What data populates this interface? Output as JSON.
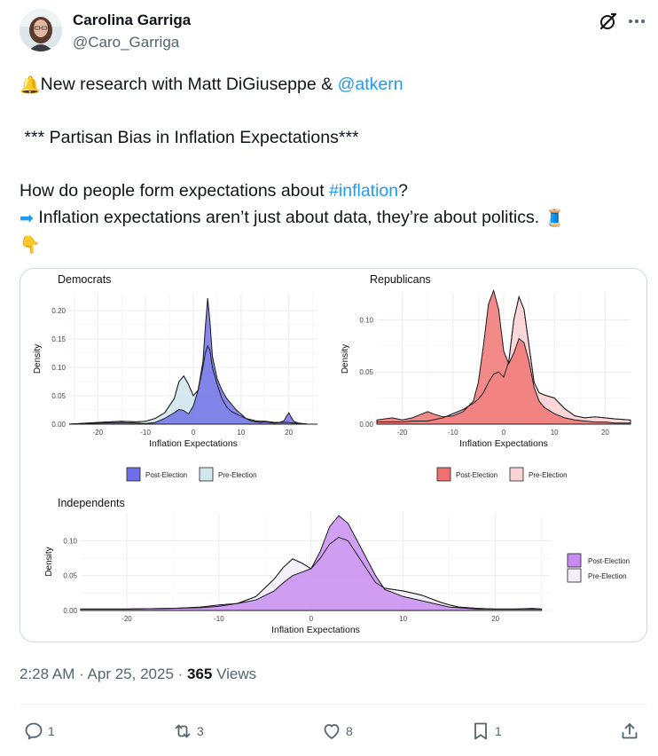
{
  "author": {
    "name": "Carolina Garriga",
    "handle": "@Caro_Garriga"
  },
  "tweet": {
    "line1_prefix": "New research with Matt DiGiuseppe & ",
    "line1_mention": "@atkern",
    "title": "*** Partisan Bias in Inflation Expectations***",
    "line3_prefix": "How do people form expectations about ",
    "line3_hashtag": "#inflation",
    "line3_suffix": "?",
    "line4": "Inflation expectations aren’t just about data, they’re about politics.",
    "emojis": {
      "bell": "🔔",
      "arrow": "➡",
      "thread": "🧵",
      "point_down": "👇"
    }
  },
  "chart_data": [
    {
      "type": "area",
      "title": "Democrats",
      "xlabel": "Inflation Expectations",
      "ylabel": "Density",
      "xlim": [
        -26,
        26
      ],
      "ylim": [
        0,
        0.23
      ],
      "xticks": [
        -20,
        -10,
        0,
        10,
        20
      ],
      "yticks": [
        0.0,
        0.05,
        0.1,
        0.15,
        0.2
      ],
      "ytick_labels": [
        "0.00",
        "0.05",
        "0.10",
        "0.15",
        "0.20"
      ],
      "legend_position": "bottom",
      "series": [
        {
          "name": "Post-Election",
          "color": "#6e6ee6",
          "x": [
            -26,
            -20,
            -15,
            -12,
            -10,
            -8,
            -6,
            -4,
            -3,
            -2,
            -1,
            0,
            1,
            2,
            2.5,
            3,
            3.5,
            4,
            5,
            6,
            7,
            8,
            9,
            10,
            11,
            12,
            13,
            14,
            15,
            16,
            17,
            18,
            19,
            19.5,
            20,
            20.5,
            21,
            22,
            24,
            26
          ],
          "y": [
            0.0,
            0.002,
            0.003,
            0.002,
            0.001,
            0.003,
            0.01,
            0.02,
            0.026,
            0.024,
            0.018,
            0.032,
            0.06,
            0.11,
            0.17,
            0.222,
            0.18,
            0.12,
            0.08,
            0.06,
            0.045,
            0.035,
            0.025,
            0.018,
            0.01,
            0.006,
            0.004,
            0.003,
            0.004,
            0.003,
            0.002,
            0.003,
            0.006,
            0.014,
            0.02,
            0.012,
            0.005,
            0.002,
            0.0,
            0.0
          ]
        },
        {
          "name": "Pre-Election",
          "color": "#d2e6ee",
          "x": [
            -26,
            -20,
            -15,
            -12,
            -10,
            -8,
            -6,
            -4,
            -3,
            -2,
            -1,
            0,
            1,
            2,
            2.5,
            3,
            3.5,
            4,
            5,
            6,
            7,
            8,
            9,
            10,
            11,
            12,
            13,
            14,
            15,
            16,
            17,
            18,
            19,
            19.5,
            20,
            20.5,
            21,
            22,
            24,
            26
          ],
          "y": [
            0.0,
            0.003,
            0.005,
            0.004,
            0.005,
            0.01,
            0.02,
            0.045,
            0.075,
            0.085,
            0.07,
            0.05,
            0.06,
            0.1,
            0.125,
            0.138,
            0.13,
            0.1,
            0.07,
            0.045,
            0.03,
            0.022,
            0.018,
            0.014,
            0.01,
            0.008,
            0.006,
            0.005,
            0.005,
            0.004,
            0.003,
            0.003,
            0.003,
            0.003,
            0.003,
            0.002,
            0.002,
            0.001,
            0.0,
            0.0
          ]
        }
      ]
    },
    {
      "type": "area",
      "title": "Republicans",
      "xlabel": "Inflation Expectations",
      "ylabel": "Density",
      "xlim": [
        -25,
        25
      ],
      "ylim": [
        0,
        0.125
      ],
      "xticks": [
        -20,
        -10,
        0,
        10,
        20
      ],
      "yticks": [
        0.0,
        0.05,
        0.1
      ],
      "ytick_labels": [
        "0.00",
        "0.05",
        "0.10"
      ],
      "legend_position": "bottom",
      "series": [
        {
          "name": "Post-Election",
          "color": "#f07070",
          "x": [
            -25,
            -22,
            -20,
            -18,
            -16,
            -15,
            -14,
            -12,
            -10,
            -8,
            -6,
            -5,
            -4,
            -3,
            -2,
            -1,
            0,
            1,
            2,
            3,
            4,
            5,
            6,
            7,
            8,
            10,
            12,
            14,
            16,
            18,
            20,
            22,
            25
          ],
          "y": [
            0.004,
            0.006,
            0.004,
            0.006,
            0.01,
            0.012,
            0.01,
            0.007,
            0.008,
            0.012,
            0.022,
            0.04,
            0.075,
            0.115,
            0.128,
            0.11,
            0.07,
            0.058,
            0.068,
            0.082,
            0.078,
            0.06,
            0.035,
            0.022,
            0.016,
            0.01,
            0.006,
            0.004,
            0.003,
            0.002,
            0.002,
            0.001,
            0.001
          ]
        },
        {
          "name": "Pre-Election",
          "color": "#f9d2d4",
          "x": [
            -25,
            -22,
            -20,
            -18,
            -16,
            -15,
            -14,
            -12,
            -10,
            -8,
            -6,
            -5,
            -4,
            -3,
            -2,
            -1,
            0,
            1,
            2,
            3,
            4,
            5,
            6,
            7,
            8,
            10,
            12,
            14,
            16,
            18,
            20,
            22,
            25
          ],
          "y": [
            0.002,
            0.002,
            0.002,
            0.003,
            0.003,
            0.003,
            0.004,
            0.006,
            0.01,
            0.014,
            0.02,
            0.024,
            0.03,
            0.04,
            0.048,
            0.05,
            0.045,
            0.06,
            0.1,
            0.122,
            0.11,
            0.075,
            0.04,
            0.03,
            0.028,
            0.025,
            0.015,
            0.008,
            0.006,
            0.007,
            0.006,
            0.005,
            0.004
          ]
        }
      ]
    },
    {
      "type": "area",
      "title": "Independents",
      "xlabel": "Inflation Expectations",
      "ylabel": "Density",
      "xlim": [
        -25,
        26
      ],
      "ylim": [
        0,
        0.14
      ],
      "xticks": [
        -20,
        -10,
        0,
        10,
        20
      ],
      "yticks": [
        0.0,
        0.05,
        0.1
      ],
      "ytick_labels": [
        "0.00",
        "0.05",
        "0.10"
      ],
      "legend_position": "right",
      "series": [
        {
          "name": "Post-Election",
          "color": "#c78af0",
          "x": [
            -25,
            -20,
            -15,
            -12,
            -10,
            -8,
            -6,
            -4,
            -3,
            -2,
            -1,
            0,
            1,
            2,
            3,
            4,
            5,
            6,
            7,
            8,
            10,
            12,
            14,
            15,
            16,
            18,
            20,
            22,
            24,
            25
          ],
          "y": [
            0.002,
            0.002,
            0.003,
            0.005,
            0.008,
            0.01,
            0.015,
            0.028,
            0.04,
            0.05,
            0.055,
            0.06,
            0.085,
            0.12,
            0.136,
            0.125,
            0.1,
            0.075,
            0.05,
            0.03,
            0.02,
            0.014,
            0.008,
            0.005,
            0.004,
            0.002,
            0.002,
            0.002,
            0.003,
            0.002
          ]
        },
        {
          "name": "Pre-Election",
          "color": "#f3eef8",
          "x": [
            -25,
            -20,
            -15,
            -12,
            -10,
            -8,
            -6,
            -4,
            -3,
            -2,
            -1,
            0,
            1,
            2,
            3,
            4,
            5,
            6,
            7,
            8,
            10,
            12,
            14,
            15,
            16,
            18,
            20,
            22,
            24,
            25
          ],
          "y": [
            0.002,
            0.002,
            0.003,
            0.004,
            0.006,
            0.01,
            0.02,
            0.045,
            0.062,
            0.074,
            0.068,
            0.06,
            0.075,
            0.095,
            0.105,
            0.1,
            0.08,
            0.06,
            0.04,
            0.032,
            0.028,
            0.022,
            0.012,
            0.008,
            0.005,
            0.003,
            0.002,
            0.002,
            0.002,
            0.002
          ]
        }
      ]
    }
  ],
  "meta": {
    "time": "2:28 AM · Apr 25, 2025 · ",
    "views": "365",
    "views_label": " Views"
  },
  "actions": {
    "replies": "1",
    "reposts": "3",
    "likes": "8",
    "bookmarks": "1"
  },
  "icons": {
    "reply": "reply-icon",
    "repost": "repost-icon",
    "like": "like-icon",
    "bookmark": "bookmark-icon",
    "share": "share-icon",
    "grok": "grok-icon",
    "more": "more-icon"
  }
}
